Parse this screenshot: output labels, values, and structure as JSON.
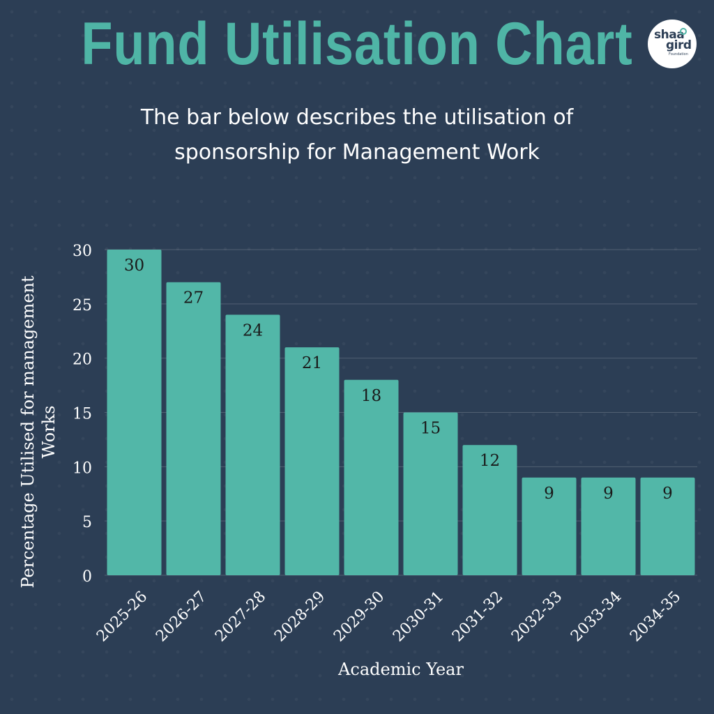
{
  "header": {
    "title": "Fund Utilisation Chart",
    "subtitle": "The bar below describes the utilisation of sponsorship for Management Work"
  },
  "logo": {
    "line1": "shaa",
    "line2": "gird",
    "line3": "Foundation"
  },
  "colors": {
    "background": "#2c3e55",
    "accent": "#4fb5a6",
    "bar": "#52b7a8",
    "text": "#ffffff",
    "bar_label": "#1a1a1a"
  },
  "chart_data": {
    "type": "bar",
    "categories": [
      "2025-26",
      "2026-27",
      "2027-28",
      "2028-29",
      "2029-30",
      "2030-31",
      "2031-32",
      "2032-33",
      "2033-34",
      "2034-35"
    ],
    "values": [
      30,
      27,
      24,
      21,
      18,
      15,
      12,
      9,
      9,
      9
    ],
    "xlabel": "Academic Year",
    "ylabel_lines": [
      "Percentage Utilised for management",
      "Works"
    ],
    "ylim": [
      0,
      30
    ],
    "yticks": [
      0,
      5,
      10,
      15,
      20,
      25,
      30
    ],
    "grid": true,
    "data_labels": true
  }
}
